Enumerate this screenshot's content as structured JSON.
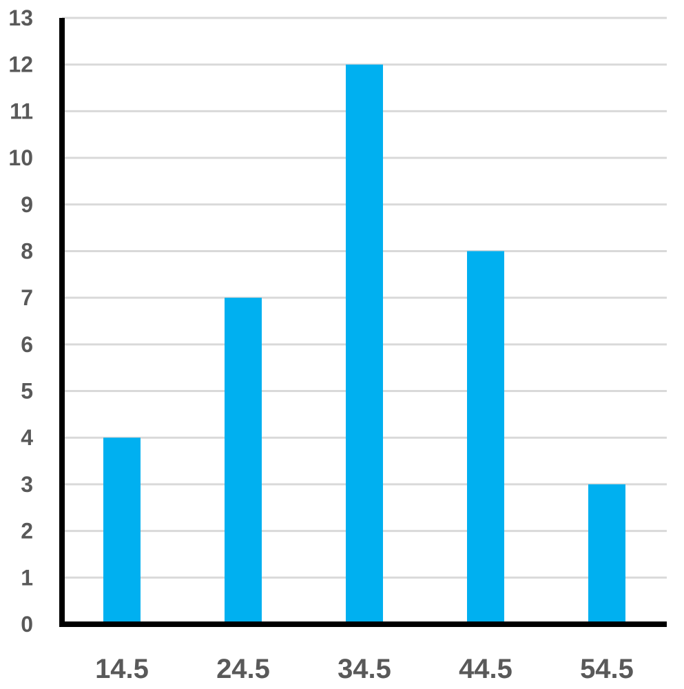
{
  "chart_data": {
    "type": "bar",
    "title": "",
    "xlabel": "",
    "ylabel": "",
    "categories": [
      "14.5",
      "24.5",
      "34.5",
      "44.5",
      "54.5"
    ],
    "series": [
      {
        "values": [
          4,
          7,
          12,
          8,
          3
        ]
      }
    ],
    "ylim": [
      0,
      13
    ],
    "yticks": [
      "0",
      "1",
      "2",
      "3",
      "4",
      "5",
      "6",
      "7",
      "8",
      "9",
      "10",
      "11",
      "12",
      "13"
    ],
    "grid": true,
    "legend": "none"
  },
  "colors": {
    "bar": "#00B0F0",
    "gridline": "#D9D9D9",
    "axis": "#000000",
    "tick_text": "#595959"
  }
}
